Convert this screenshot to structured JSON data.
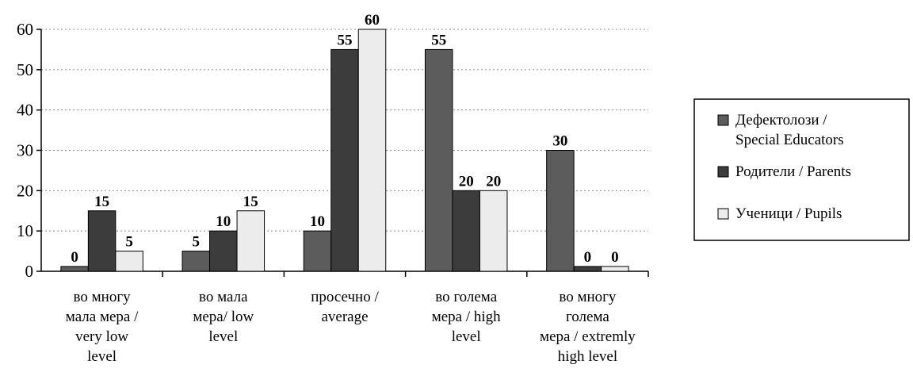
{
  "chart_data": {
    "type": "bar",
    "title": "",
    "xlabel": "",
    "ylabel": "",
    "ylim": [
      0,
      60
    ],
    "yticks": [
      "0",
      "10",
      "20",
      "30",
      "40",
      "50",
      "60"
    ],
    "grid": "dotted horizontal",
    "legend_position": "right",
    "categories": [
      [
        "во многу",
        "мала мера /",
        "very low",
        "level"
      ],
      [
        "во мала",
        "мера/ low",
        "level"
      ],
      [
        "просечно /",
        "average"
      ],
      [
        "во голема",
        "мера / high",
        "level"
      ],
      [
        "во многу",
        "голема",
        "мера / extremly",
        "high level"
      ]
    ],
    "series": [
      {
        "name": [
          "Дефектолози /",
          "Special Educators"
        ],
        "values": [
          0,
          5,
          10,
          55,
          30
        ],
        "color": "#5c5c5c"
      },
      {
        "name": [
          "Родители / Parents"
        ],
        "values": [
          15,
          10,
          55,
          20,
          0
        ],
        "color": "#3c3c3c"
      },
      {
        "name": [
          "Ученици / Pupils"
        ],
        "values": [
          5,
          15,
          60,
          20,
          0
        ],
        "color": "#ececec"
      }
    ]
  }
}
